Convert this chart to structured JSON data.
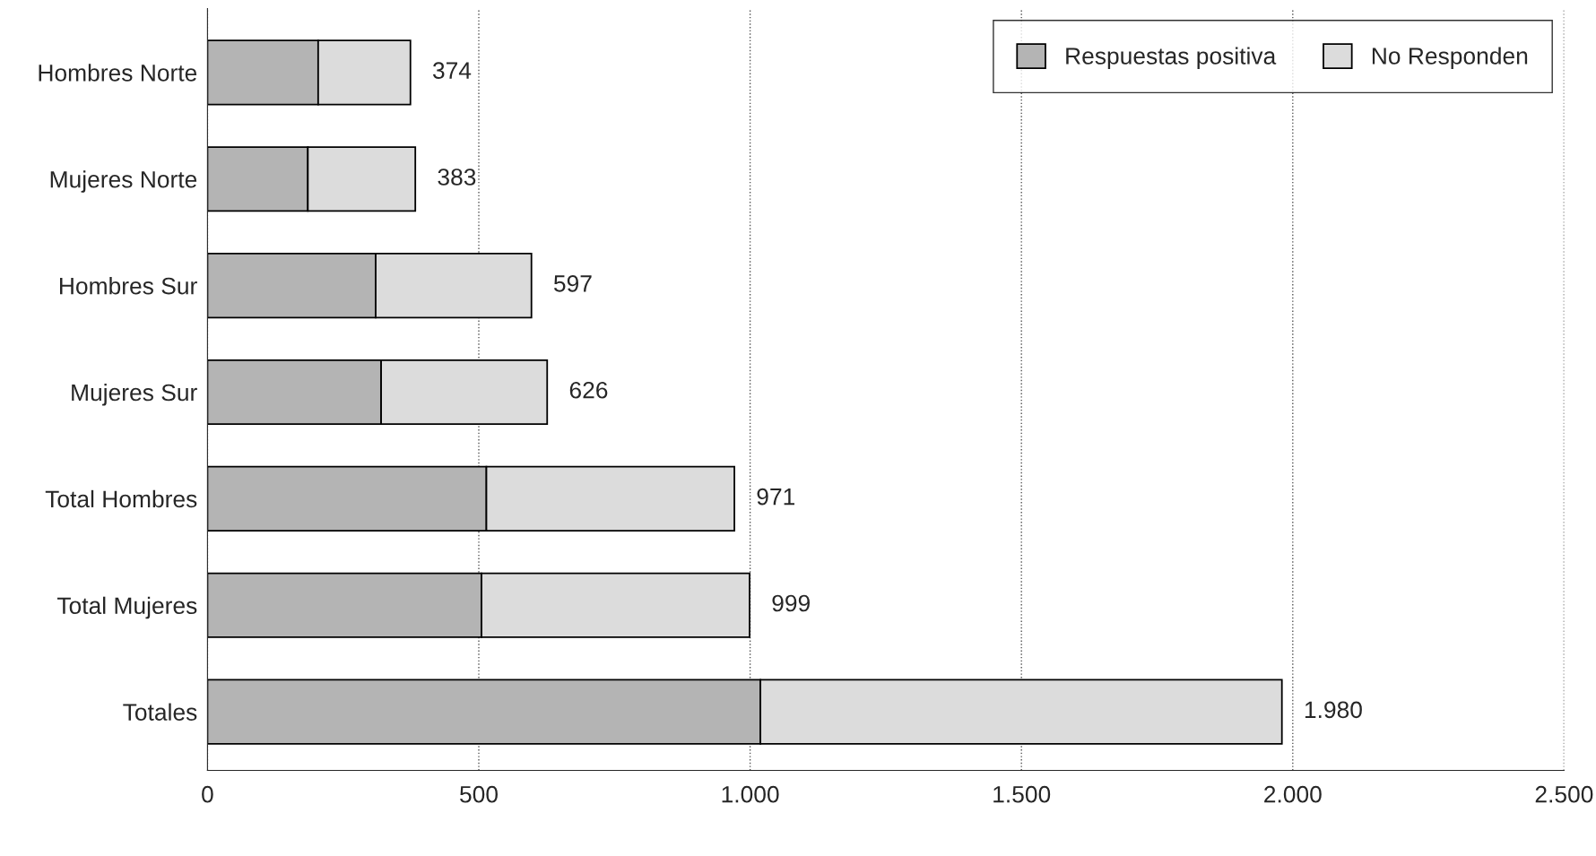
{
  "chart_data": {
    "type": "bar",
    "orientation": "horizontal",
    "stacked": true,
    "categories": [
      "Hombres Norte",
      "Mujeres Norte",
      "Hombres Sur",
      "Mujeres Sur",
      "Total Hombres",
      "Total Mujeres",
      "Totales"
    ],
    "series": [
      {
        "name": "Respuestas positiva",
        "color": "#b4b4b4",
        "values": [
          204,
          185,
          310,
          320,
          514,
          505,
          1019
        ]
      },
      {
        "name": "No Responden",
        "color": "#dcdcdc",
        "values": [
          170,
          198,
          287,
          306,
          457,
          494,
          961
        ]
      }
    ],
    "totals": [
      "374",
      "383",
      "597",
      "626",
      "971",
      "999",
      "1.980"
    ],
    "xlim": [
      0,
      2500
    ],
    "xticks": [
      0,
      500,
      {
        "value": 1000,
        "label": "1.000"
      },
      {
        "value": 1500,
        "label": "1.500"
      },
      {
        "value": 2000,
        "label": "2.000"
      },
      {
        "value": 2500,
        "label": "2.500"
      }
    ],
    "grid": "x",
    "legend": "top right"
  }
}
